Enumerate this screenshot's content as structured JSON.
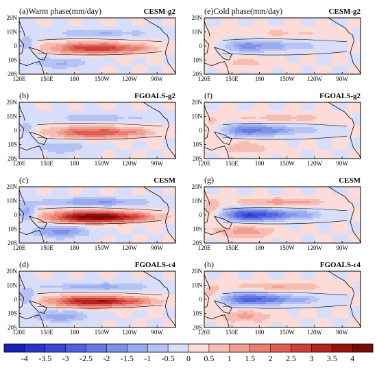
{
  "chart_data": {
    "type": "heatmap",
    "x_ticks": [
      "120E",
      "150E",
      "180",
      "150W",
      "120W",
      "90W"
    ],
    "y_ticks": [
      "20N",
      "10N",
      "0",
      "10S",
      "20S"
    ],
    "panels": [
      {
        "label": "(a)",
        "title": "Warm phase(mm/day)",
        "model": "CESM-g2",
        "phase": "warm",
        "peak": 2.6
      },
      {
        "label": "(e)",
        "title": "Cold phase(mm/day)",
        "model": "CESM-g2",
        "phase": "cold",
        "peak": -1.6
      },
      {
        "label": "(b)",
        "title": "",
        "model": "FGOALS-g2",
        "phase": "warm",
        "peak": 2.2
      },
      {
        "label": "(f)",
        "title": "",
        "model": "FGOALS-g2",
        "phase": "cold",
        "peak": -2.1
      },
      {
        "label": "(c)",
        "title": "",
        "model": "CESM",
        "phase": "warm",
        "peak": 4.0
      },
      {
        "label": "(g)",
        "title": "",
        "model": "CESM",
        "phase": "cold",
        "peak": -3.2
      },
      {
        "label": "(d)",
        "title": "",
        "model": "FGOALS-c4",
        "phase": "warm",
        "peak": 3.2
      },
      {
        "label": "(h)",
        "title": "",
        "model": "FGOALS-c4",
        "phase": "cold",
        "peak": -2.6
      }
    ],
    "colorbar": {
      "labels": [
        "-4",
        "-3.5",
        "-3",
        "-2.5",
        "-2",
        "-1.5",
        "-1",
        "-0.5",
        "0",
        "0.5",
        "1",
        "1.5",
        "2",
        "2.5",
        "3",
        "3.5",
        "4"
      ],
      "colors": [
        "#1a1fb8",
        "#2a33cc",
        "#3a48d8",
        "#4f60e0",
        "#6479e6",
        "#7d91ea",
        "#9aaaef",
        "#b6c2f4",
        "#d8def9",
        "#fbdcd8",
        "#f6bdb5",
        "#f09e92",
        "#e87f71",
        "#de5f52",
        "#cf3f36",
        "#b5231f",
        "#96100e",
        "#7a0a08"
      ]
    }
  }
}
